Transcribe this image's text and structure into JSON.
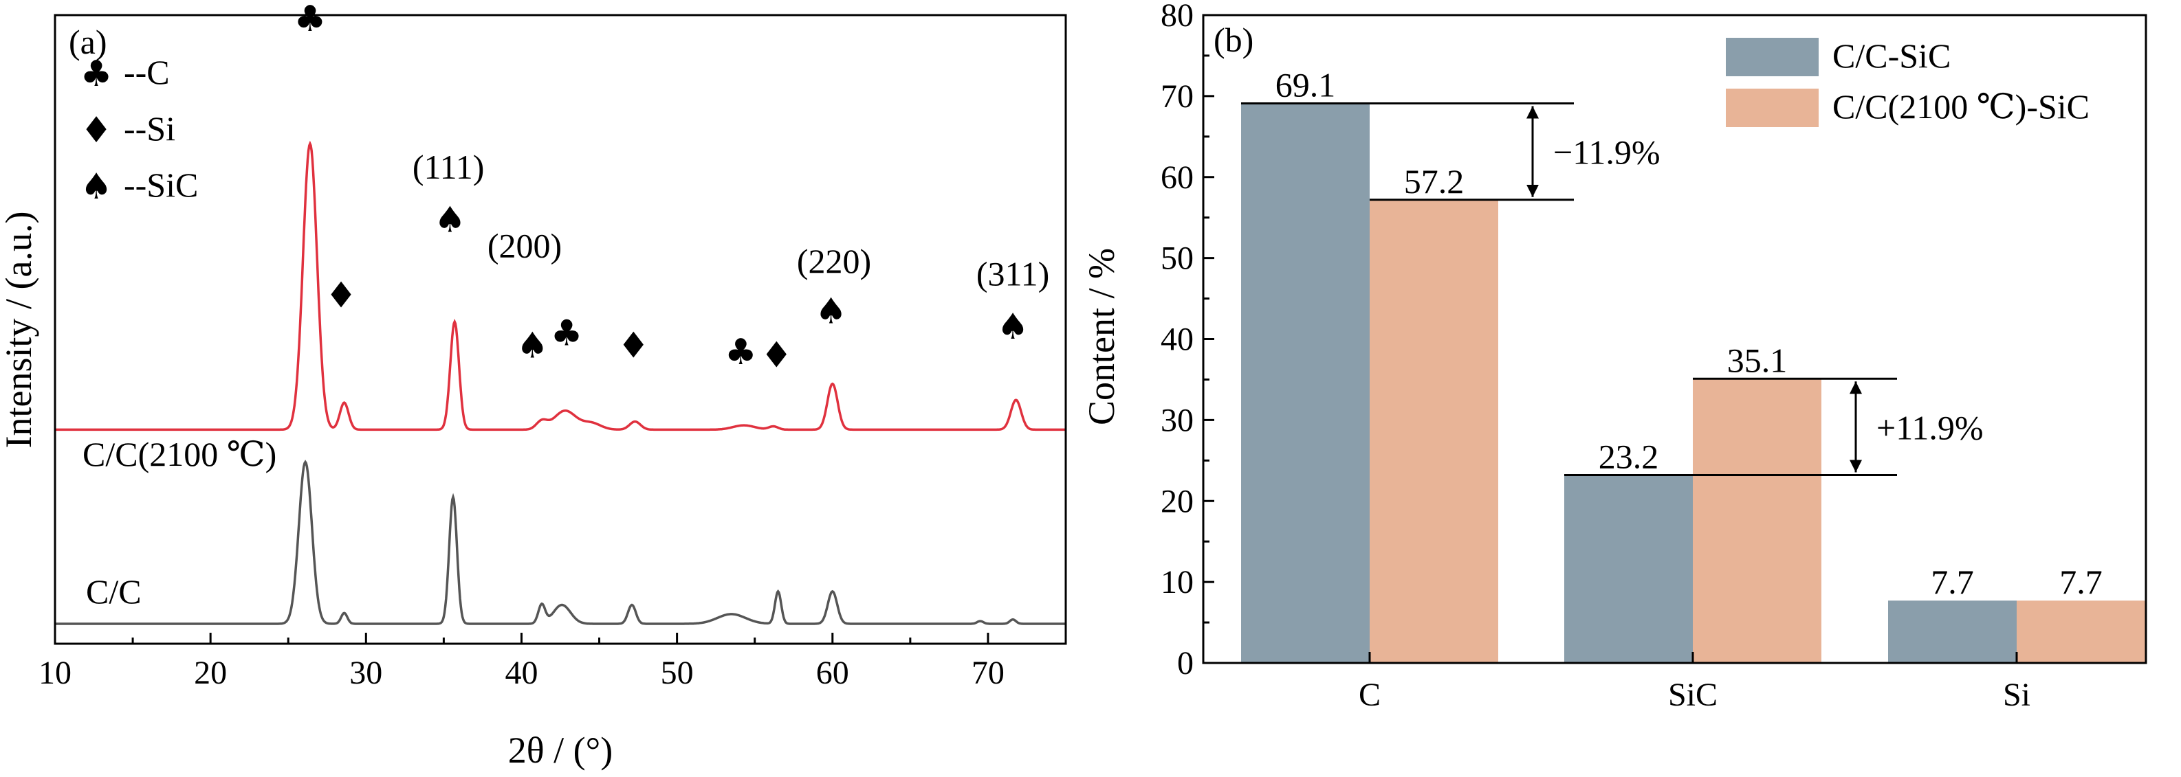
{
  "chart_data": [
    {
      "panel": "(a)",
      "type": "line",
      "xlabel": "2θ / (°)",
      "ylabel": "Intensity / (a.u.)",
      "xlim": [
        10,
        75
      ],
      "xticks": [
        10,
        20,
        30,
        40,
        50,
        60,
        70
      ],
      "grid": false,
      "legend": {
        "placement": "top-left",
        "entries": [
          {
            "icon": "club-icon",
            "glyph": "♣",
            "label": "--C"
          },
          {
            "icon": "diamond-icon",
            "glyph": "♦",
            "label": "--Si"
          },
          {
            "icon": "spade-icon",
            "glyph": "♠",
            "label": "--SiC"
          }
        ]
      },
      "series": [
        {
          "name": "C/C(2100 ℃)",
          "color": "#e0313e",
          "baseline": 0.36,
          "peaks": [
            {
              "x": 26.4,
              "h": 0.53,
              "w": 0.45
            },
            {
              "x": 28.6,
              "h": 0.05,
              "w": 0.28
            },
            {
              "x": 35.7,
              "h": 0.2,
              "w": 0.28
            },
            {
              "x": 41.3,
              "h": 0.015,
              "w": 0.35
            },
            {
              "x": 42.8,
              "h": 0.035,
              "w": 0.7
            },
            {
              "x": 44.5,
              "h": 0.012,
              "w": 0.6
            },
            {
              "x": 47.3,
              "h": 0.015,
              "w": 0.35
            },
            {
              "x": 54.3,
              "h": 0.008,
              "w": 0.7
            },
            {
              "x": 56.2,
              "h": 0.006,
              "w": 0.3
            },
            {
              "x": 60.0,
              "h": 0.085,
              "w": 0.33
            },
            {
              "x": 71.8,
              "h": 0.055,
              "w": 0.33
            }
          ]
        },
        {
          "name": "C/C",
          "color": "#555555",
          "baseline": 0.0,
          "peaks": [
            {
              "x": 26.1,
              "h": 0.3,
              "w": 0.42
            },
            {
              "x": 28.6,
              "h": 0.02,
              "w": 0.2
            },
            {
              "x": 35.6,
              "h": 0.235,
              "w": 0.25
            },
            {
              "x": 41.3,
              "h": 0.035,
              "w": 0.22
            },
            {
              "x": 42.6,
              "h": 0.035,
              "w": 0.55
            },
            {
              "x": 47.1,
              "h": 0.035,
              "w": 0.25
            },
            {
              "x": 53.5,
              "h": 0.018,
              "w": 0.9
            },
            {
              "x": 56.5,
              "h": 0.06,
              "w": 0.2
            },
            {
              "x": 60.0,
              "h": 0.06,
              "w": 0.3
            },
            {
              "x": 69.5,
              "h": 0.005,
              "w": 0.2
            },
            {
              "x": 71.6,
              "h": 0.008,
              "w": 0.2
            }
          ]
        }
      ],
      "series_labels": [
        "C/C(2100 ℃)",
        "C/C"
      ],
      "annotations": [
        {
          "x": 26.4,
          "y": 0.975,
          "glyph": "♣",
          "icon": "club-icon"
        },
        {
          "x": 28.4,
          "y": 0.535,
          "glyph": "♦",
          "icon": "diamond-icon"
        },
        {
          "x": 35.4,
          "y": 0.655,
          "glyph": "♠",
          "icon": "spade-icon"
        },
        {
          "x": 35.3,
          "y": 0.74,
          "text": "(111)"
        },
        {
          "x": 40.2,
          "y": 0.615,
          "text": "(200)"
        },
        {
          "x": 40.7,
          "y": 0.455,
          "glyph": "♠",
          "icon": "spade-icon"
        },
        {
          "x": 42.9,
          "y": 0.475,
          "glyph": "♣",
          "icon": "club-icon"
        },
        {
          "x": 47.2,
          "y": 0.455,
          "glyph": "♦",
          "icon": "diamond-icon"
        },
        {
          "x": 54.1,
          "y": 0.445,
          "glyph": "♣",
          "icon": "club-icon"
        },
        {
          "x": 56.4,
          "y": 0.44,
          "glyph": "♦",
          "icon": "diamond-icon"
        },
        {
          "x": 59.9,
          "y": 0.51,
          "glyph": "♠",
          "icon": "spade-icon"
        },
        {
          "x": 60.1,
          "y": 0.59,
          "text": "(220)"
        },
        {
          "x": 71.6,
          "y": 0.485,
          "glyph": "♠",
          "icon": "spade-icon"
        },
        {
          "x": 71.6,
          "y": 0.57,
          "text": "(311)"
        }
      ]
    },
    {
      "panel": "(b)",
      "type": "bar",
      "xlabel": "",
      "ylabel": "Content / %",
      "ylim": [
        0,
        80
      ],
      "yticks": [
        0,
        10,
        20,
        30,
        40,
        50,
        60,
        70,
        80
      ],
      "categories": [
        "C",
        "SiC",
        "Si"
      ],
      "grid": false,
      "legend_placement": "top-right",
      "series": [
        {
          "name": "C/C-SiC",
          "color": "#8a9eab",
          "values": [
            69.1,
            23.2,
            7.7
          ],
          "labels": [
            "69.1",
            "23.2",
            "7.7"
          ]
        },
        {
          "name": "C/C(2100 ℃)-SiC",
          "color": "#e8b497",
          "values": [
            57.2,
            35.1,
            7.7
          ],
          "labels": [
            "57.2",
            "35.1",
            "7.7"
          ]
        }
      ],
      "differences": [
        {
          "category": "C",
          "text": "−11.9%"
        },
        {
          "category": "SiC",
          "text": "+11.9%"
        }
      ]
    }
  ]
}
